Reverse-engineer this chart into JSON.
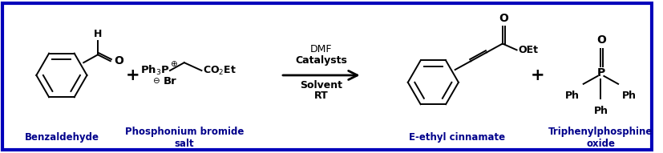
{
  "background_color": "#ffffff",
  "border_color": "#0000bb",
  "border_linewidth": 3,
  "label_benzaldehyde": "Benzaldehyde",
  "label_phosphonium": "Phosphonium bromide\nsalt",
  "label_cinnamate": "E-ethyl cinnamate",
  "label_triphenyl": "Triphenylphosphine\noxide",
  "arrow_text_line1": "DMF",
  "arrow_text_line2": "Catalysts",
  "arrow_text_line3": "Solvent",
  "arrow_text_line4": "RT",
  "label_fontsize": 8.5,
  "label_bold_color": "#00008B",
  "lw": 1.4
}
